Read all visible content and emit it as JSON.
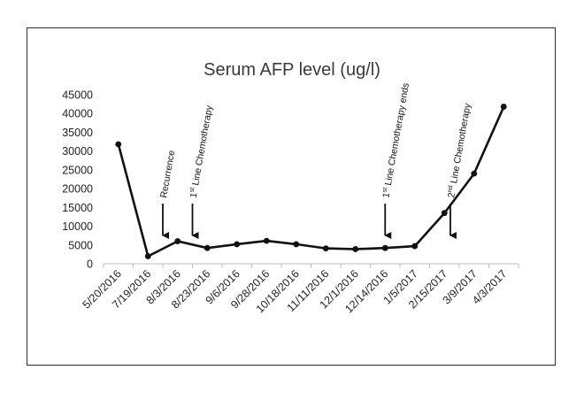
{
  "chart_data": {
    "type": "line",
    "title": "Serum AFP level (ug/l)",
    "xlabel": "",
    "ylabel": "",
    "categories": [
      "5/20/2016",
      "7/19/2016",
      "8/3/2016",
      "8/23/2016",
      "9/6/2016",
      "9/28/2016",
      "10/18/2016",
      "11/11/2016",
      "12/1/2016",
      "12/14/2016",
      "1/5/2017",
      "2/15/2017",
      "3/9/2017",
      "4/3/2017"
    ],
    "values": [
      31800,
      2000,
      6000,
      4200,
      5200,
      6100,
      5200,
      4100,
      3900,
      4200,
      4700,
      13500,
      24000,
      41800
    ],
    "ylim": [
      0,
      45000
    ],
    "yticks": [
      0,
      5000,
      10000,
      15000,
      20000,
      25000,
      30000,
      35000,
      40000,
      45000
    ],
    "ytick_labels": [
      "0",
      "5000",
      "10000",
      "15000",
      "20000",
      "25000",
      "30000",
      "35000",
      "40000",
      "45000"
    ],
    "grid": false,
    "line_color": "#111111",
    "annotations": [
      {
        "category_index": 1.5,
        "label": "Recurrence",
        "label_sup": "",
        "label_rest": ""
      },
      {
        "category_index": 2.5,
        "label": "1",
        "label_sup": "st",
        "label_rest": " Line Chemotherapy"
      },
      {
        "category_index": 9,
        "label": "1",
        "label_sup": "st",
        "label_rest": " Line Chemotherapy ends"
      },
      {
        "category_index": 11.2,
        "label": "2",
        "label_sup": "nd",
        "label_rest": " Line Chemotherapy"
      }
    ]
  }
}
